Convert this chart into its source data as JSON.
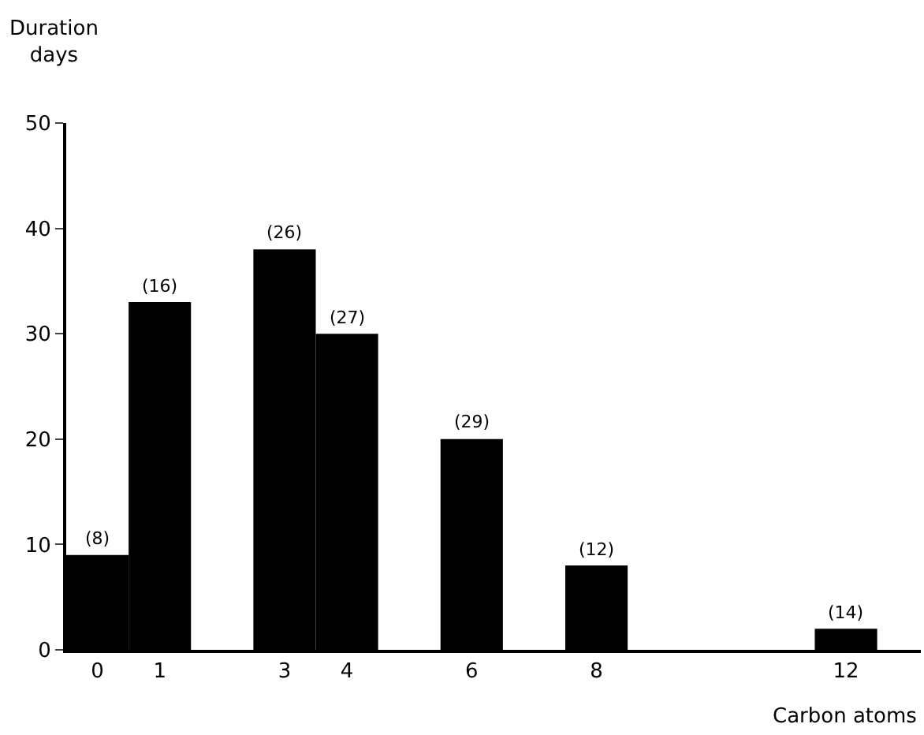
{
  "chart_data": {
    "type": "bar",
    "xlabel": "Carbon atoms",
    "ylabel": "Duration\ndays",
    "x": [
      0,
      1,
      3,
      4,
      6,
      8,
      12
    ],
    "values": [
      9,
      33,
      38,
      30,
      20,
      8,
      2
    ],
    "annotations": [
      {
        "text": "(8)",
        "x": 0,
        "y": 9
      },
      {
        "text": "(16)",
        "x": 1,
        "y": 33
      },
      {
        "text": "(26)",
        "x": 3,
        "y": 38
      },
      {
        "text": "(27)",
        "x": 4,
        "y": 30
      },
      {
        "text": "(29)",
        "x": 6,
        "y": 20
      },
      {
        "text": "(12)",
        "x": 8,
        "y": 8
      },
      {
        "text": "(14)",
        "x": 12,
        "y": 2
      }
    ],
    "color": "#000000",
    "xlim": [
      -0.5,
      13.2
    ],
    "xticks": [
      0,
      1,
      3,
      4,
      6,
      8,
      12
    ],
    "ylim": [
      0,
      50
    ],
    "yticks": [
      0,
      10,
      20,
      30,
      40,
      50
    ]
  }
}
